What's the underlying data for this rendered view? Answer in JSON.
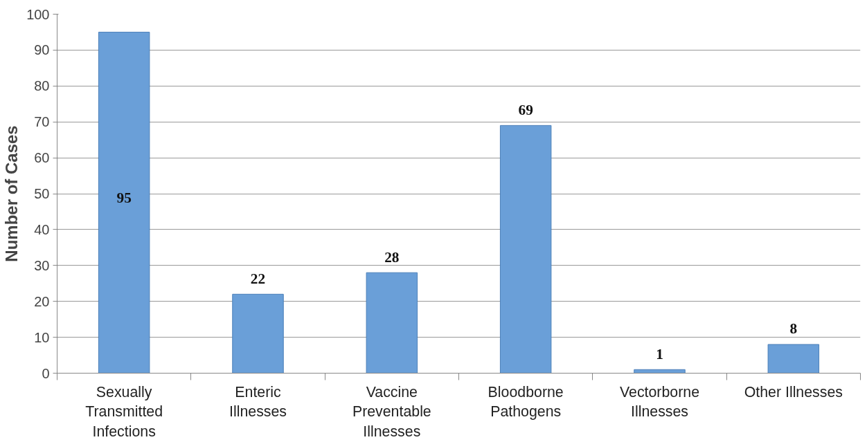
{
  "chart_data": {
    "type": "bar",
    "ylabel": "Number of Cases",
    "categories": [
      "Sexually Transmitted Infections",
      "Enteric Illnesses",
      "Vaccine Preventable Illnesses",
      "Bloodborne Pathogens",
      "Vectorborne Illnesses",
      "Other Illnesses"
    ],
    "values": [
      95,
      22,
      28,
      69,
      1,
      8
    ],
    "color": "#6a9fd8",
    "ylim": [
      0,
      100
    ],
    "yticks": [
      0,
      10,
      20,
      30,
      40,
      50,
      60,
      70,
      80,
      90,
      100
    ],
    "grid": "y",
    "data_labels": true
  }
}
